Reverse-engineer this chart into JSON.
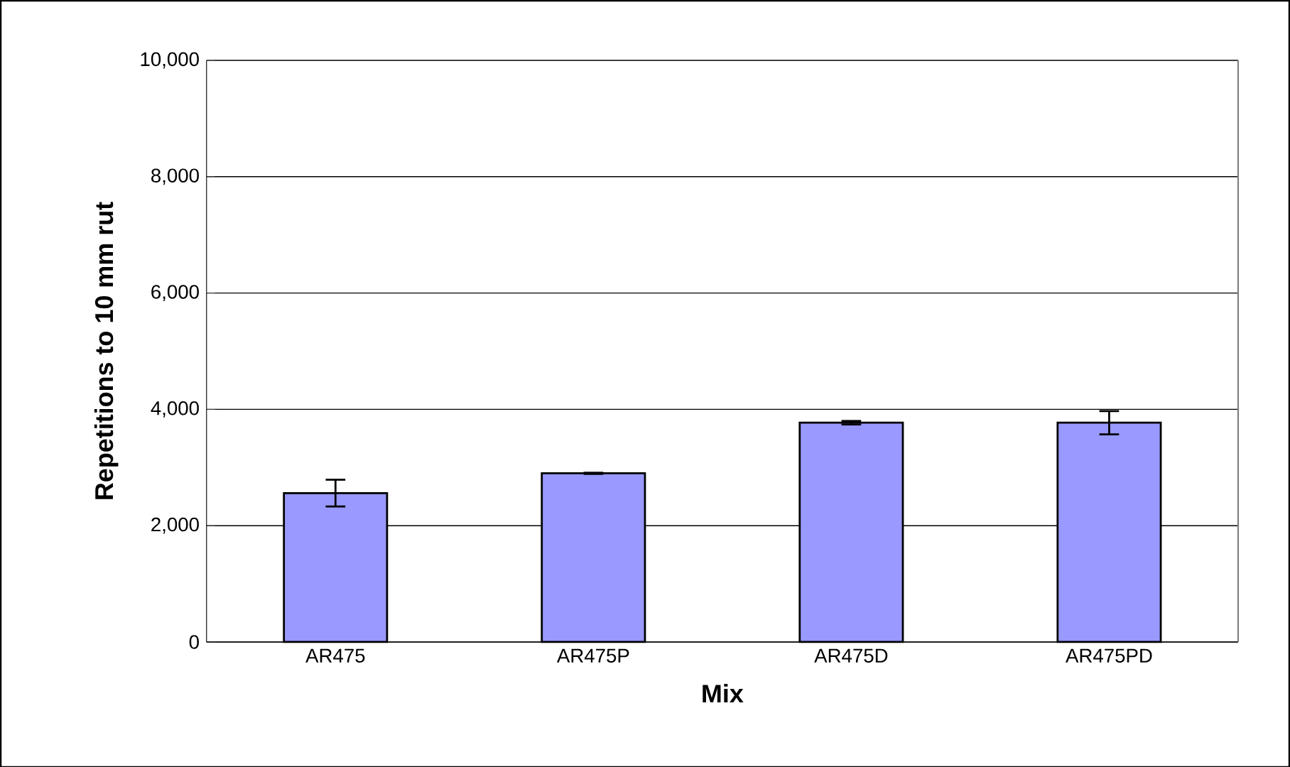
{
  "chart_data": {
    "type": "bar",
    "xlabel": "Mix",
    "ylabel": "Repetitions to 10 mm rut",
    "categories": [
      "AR475",
      "AR475P",
      "AR475D",
      "AR475PD"
    ],
    "values": [
      2560,
      2900,
      3770,
      3770
    ],
    "errors": [
      230,
      10,
      30,
      200
    ],
    "color": "#9999ff",
    "ylim": [
      0,
      10000
    ],
    "yticks": [
      {
        "value": 0,
        "label": "0"
      },
      {
        "value": 2000,
        "label": "2,000"
      },
      {
        "value": 4000,
        "label": "4,000"
      },
      {
        "value": 6000,
        "label": "6,000"
      },
      {
        "value": 8000,
        "label": "8,000"
      },
      {
        "value": 10000,
        "label": "10,000"
      }
    ],
    "grid": "y"
  }
}
